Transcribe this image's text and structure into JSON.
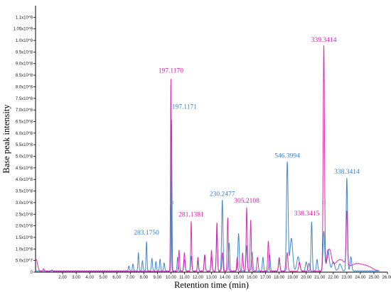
{
  "chart_data": {
    "type": "line",
    "xlabel": "Retention time (min)",
    "ylabel": "Base peak intensity",
    "xlim": [
      0,
      26
    ],
    "ylim": [
      0,
      1150000000
    ],
    "x_ticks": [
      {
        "value": 2,
        "label": "2.00"
      },
      {
        "value": 3,
        "label": "3.00"
      },
      {
        "value": 4,
        "label": "4.00"
      },
      {
        "value": 5,
        "label": "5.00"
      },
      {
        "value": 6,
        "label": "6.00"
      },
      {
        "value": 7,
        "label": "7.00"
      },
      {
        "value": 8,
        "label": "8.00"
      },
      {
        "value": 9,
        "label": "9.00"
      },
      {
        "value": 10,
        "label": "10.00"
      },
      {
        "value": 11,
        "label": "11.00"
      },
      {
        "value": 12,
        "label": "12.00"
      },
      {
        "value": 13,
        "label": "13.00"
      },
      {
        "value": 14,
        "label": "14.00"
      },
      {
        "value": 15,
        "label": "15.00"
      },
      {
        "value": 16,
        "label": "16.00"
      },
      {
        "value": 17,
        "label": "17.00"
      },
      {
        "value": 18,
        "label": "18.00"
      },
      {
        "value": 19,
        "label": "19.00"
      },
      {
        "value": 20,
        "label": "20.00"
      },
      {
        "value": 21,
        "label": "21.00"
      },
      {
        "value": 22,
        "label": "22.00"
      },
      {
        "value": 23,
        "label": "23.00"
      },
      {
        "value": 24,
        "label": "24.00"
      },
      {
        "value": 25,
        "label": "25.00"
      },
      {
        "value": 26,
        "label": "26.00"
      }
    ],
    "y_ticks": [
      {
        "value": 0,
        "label": "0"
      },
      {
        "value": 50000000,
        "label": "5.0x10^7"
      },
      {
        "value": 100000000,
        "label": "1.0x10^8"
      },
      {
        "value": 150000000,
        "label": "1.5x10^8"
      },
      {
        "value": 200000000,
        "label": "2.0x10^8"
      },
      {
        "value": 250000000,
        "label": "2.5x10^8"
      },
      {
        "value": 300000000,
        "label": "3.0x10^8"
      },
      {
        "value": 350000000,
        "label": "3.5x10^8"
      },
      {
        "value": 400000000,
        "label": "4.0x10^8"
      },
      {
        "value": 450000000,
        "label": "4.5x10^8"
      },
      {
        "value": 500000000,
        "label": "5.0x10^8"
      },
      {
        "value": 550000000,
        "label": "5.5x10^8"
      },
      {
        "value": 600000000,
        "label": "6.0x10^8"
      },
      {
        "value": 650000000,
        "label": "6.5x10^8"
      },
      {
        "value": 700000000,
        "label": "7.0x10^8"
      },
      {
        "value": 750000000,
        "label": "7.5x10^8"
      },
      {
        "value": 800000000,
        "label": "8.0x10^8"
      },
      {
        "value": 850000000,
        "label": "8.5x10^8"
      },
      {
        "value": 900000000,
        "label": "9.0x10^8"
      },
      {
        "value": 950000000,
        "label": "9.5x10^8"
      },
      {
        "value": 1000000000,
        "label": "1.0x10^9"
      },
      {
        "value": 1050000000,
        "label": "1.05x10^9"
      },
      {
        "value": 1100000000,
        "label": "1.1x10^9"
      }
    ],
    "grid": false,
    "colors": {
      "magenta": "#d61aa8",
      "blue": "#3a7fc8"
    },
    "series": [
      {
        "color": "#3a7fc8",
        "baseline": 4000000,
        "peaks": [
          [
            6.9,
            22000000,
            0.04
          ],
          [
            7.2,
            30000000,
            0.04
          ],
          [
            7.6,
            80000000,
            0.035
          ],
          [
            7.9,
            45000000,
            0.04
          ],
          [
            8.2,
            125000000,
            0.035
          ],
          [
            8.6,
            55000000,
            0.04
          ],
          [
            8.9,
            40000000,
            0.04
          ],
          [
            9.2,
            50000000,
            0.04
          ],
          [
            9.5,
            35000000,
            0.04
          ],
          [
            10.05,
            650000000,
            0.03
          ],
          [
            10.5,
            60000000,
            0.04
          ],
          [
            11.0,
            50000000,
            0.045
          ],
          [
            11.5,
            65000000,
            0.04
          ],
          [
            12.0,
            45000000,
            0.04
          ],
          [
            12.5,
            70000000,
            0.04
          ],
          [
            13.0,
            60000000,
            0.045
          ],
          [
            13.4,
            160000000,
            0.045
          ],
          [
            13.8,
            305000000,
            0.05
          ],
          [
            14.3,
            120000000,
            0.045
          ],
          [
            15.0,
            160000000,
            0.05
          ],
          [
            15.6,
            110000000,
            0.045
          ],
          [
            16.0,
            80000000,
            0.05
          ],
          [
            16.8,
            60000000,
            0.045
          ],
          [
            17.3,
            70000000,
            0.045
          ],
          [
            18.0,
            50000000,
            0.05
          ],
          [
            18.6,
            470000000,
            0.06
          ],
          [
            18.9,
            140000000,
            0.1
          ],
          [
            19.4,
            60000000,
            0.1
          ],
          [
            20.0,
            40000000,
            0.06
          ],
          [
            20.4,
            210000000,
            0.045
          ],
          [
            20.8,
            50000000,
            0.05
          ],
          [
            21.3,
            170000000,
            0.06
          ],
          [
            21.6,
            90000000,
            0.1
          ],
          [
            22.0,
            40000000,
            0.1
          ],
          [
            22.5,
            30000000,
            0.1
          ],
          [
            23.0,
            400000000,
            0.05
          ],
          [
            23.3,
            60000000,
            0.06
          ]
        ]
      },
      {
        "color": "#d61aa8",
        "baseline": 3000000,
        "peaks": [
          [
            0.05,
            50000000,
            0.1
          ],
          [
            0.6,
            10000000,
            0.05
          ],
          [
            1.2,
            6000000,
            0.05
          ],
          [
            10.0,
            830000000,
            0.03
          ],
          [
            10.6,
            90000000,
            0.04
          ],
          [
            11.0,
            80000000,
            0.045
          ],
          [
            11.5,
            215000000,
            0.035
          ],
          [
            12.0,
            60000000,
            0.04
          ],
          [
            12.5,
            70000000,
            0.045
          ],
          [
            13.0,
            90000000,
            0.04
          ],
          [
            13.4,
            210000000,
            0.04
          ],
          [
            13.8,
            80000000,
            0.04
          ],
          [
            14.2,
            230000000,
            0.04
          ],
          [
            14.9,
            60000000,
            0.04
          ],
          [
            15.3,
            80000000,
            0.04
          ],
          [
            15.6,
            275000000,
            0.04
          ],
          [
            15.9,
            220000000,
            0.04
          ],
          [
            16.4,
            60000000,
            0.05
          ],
          [
            17.2,
            130000000,
            0.045
          ],
          [
            18.0,
            60000000,
            0.05
          ],
          [
            18.6,
            80000000,
            0.05
          ],
          [
            19.5,
            40000000,
            0.06
          ],
          [
            20.2,
            35000000,
            0.06
          ],
          [
            21.3,
            970000000,
            0.05
          ],
          [
            21.7,
            90000000,
            0.15
          ],
          [
            22.5,
            50000000,
            0.4
          ],
          [
            23.0,
            230000000,
            0.05
          ],
          [
            23.7,
            30000000,
            0.4
          ],
          [
            24.5,
            20000000,
            0.4
          ]
        ]
      }
    ],
    "annotations": [
      {
        "text": "197.1170",
        "x": 10.0,
        "y": 830000000,
        "color": "#d61aa8"
      },
      {
        "text": "197.1171",
        "x": 10.05,
        "y": 650000000,
        "color": "#3a7fc8"
      },
      {
        "text": "283.1750",
        "x": 8.2,
        "y": 125000000,
        "color": "#3a7fc8"
      },
      {
        "text": "281.1381",
        "x": 11.5,
        "y": 215000000,
        "color": "#d61aa8"
      },
      {
        "text": "230.2477",
        "x": 13.8,
        "y": 305000000,
        "color": "#3a7fc8"
      },
      {
        "text": "305.2108",
        "x": 15.6,
        "y": 275000000,
        "color": "#d61aa8"
      },
      {
        "text": "546.3994",
        "x": 18.6,
        "y": 470000000,
        "color": "#3a7fc8"
      },
      {
        "text": "339.3414",
        "x": 21.3,
        "y": 970000000,
        "color": "#d61aa8"
      },
      {
        "text": "338.3415",
        "x": 21.3,
        "y": 300000000,
        "color": "#d61aa8"
      },
      {
        "text": "338.3414",
        "x": 23.0,
        "y": 400000000,
        "color": "#3a7fc8"
      }
    ]
  }
}
